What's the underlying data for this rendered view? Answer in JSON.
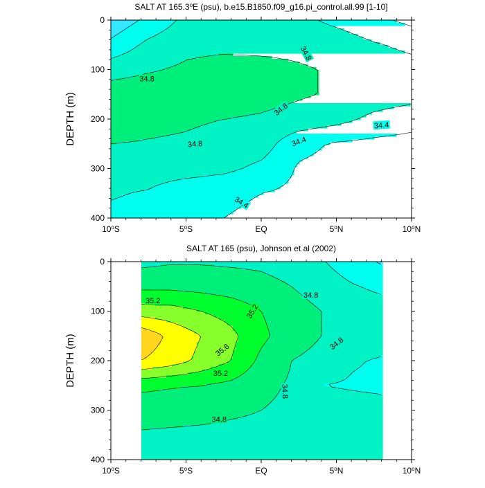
{
  "colors": {
    "levels": [
      34.2,
      34.4,
      34.6,
      34.8,
      35.0,
      35.2,
      35.4,
      35.6,
      35.8
    ],
    "fill": [
      "#00ccf4",
      "#33e8ff",
      "#00ffee",
      "#00f2c5",
      "#00ef7a",
      "#00ff2e",
      "#86ff2b",
      "#ffff00",
      "#ffd51e",
      "#ffae00"
    ]
  },
  "chart_data": [
    {
      "type": "heatmap",
      "title": "SALT AT 165.3",
      "title_deg": "o",
      "title_rest": "E (psu), b.e15.B1850.f09_g16.pi_control.all.99 [1-10]",
      "ylabel": "DEPTH (m)",
      "xlabel": "",
      "xlim": [
        -10,
        10
      ],
      "ylim": [
        400,
        0
      ],
      "x_ticks": [
        {
          "value": -10,
          "label": "10",
          "deg": "o",
          "suffix": "S"
        },
        {
          "value": -5,
          "label": "5",
          "deg": "o",
          "suffix": "S"
        },
        {
          "value": 0,
          "label": "EQ",
          "deg": "",
          "suffix": ""
        },
        {
          "value": 5,
          "label": "5",
          "deg": "o",
          "suffix": "N"
        },
        {
          "value": 10,
          "label": "10",
          "deg": "o",
          "suffix": "N"
        }
      ],
      "y_ticks": [
        "0",
        "100",
        "200",
        "300",
        "400"
      ],
      "y_tick_values": [
        0,
        100,
        200,
        300,
        400
      ],
      "x": [
        -10,
        -7.5,
        -5,
        -2.5,
        0,
        2.5,
        5,
        7.5,
        10
      ],
      "depth": [
        0,
        50,
        100,
        150,
        200,
        250,
        300,
        350,
        400
      ],
      "z": [
        [
          34.25,
          34.45,
          34.65,
          34.75,
          34.75,
          34.65,
          34.55,
          34.45,
          34.35
        ],
        [
          34.45,
          34.65,
          34.75,
          34.75,
          34.75,
          34.75,
          34.72,
          34.62,
          34.55
        ],
        [
          34.72,
          34.78,
          34.83,
          34.88,
          34.86,
          34.82,
          34.78,
          34.72,
          34.68
        ],
        [
          34.9,
          34.92,
          34.91,
          34.9,
          34.86,
          34.82,
          34.78,
          34.72,
          34.68
        ],
        [
          34.88,
          34.84,
          34.82,
          34.8,
          34.78,
          34.74,
          34.67,
          34.55,
          34.48
        ],
        [
          34.8,
          34.79,
          34.78,
          34.75,
          34.7,
          34.45,
          34.38,
          34.35,
          34.33
        ],
        [
          34.72,
          34.71,
          34.7,
          34.65,
          34.55,
          34.38,
          34.35,
          34.33,
          34.32
        ],
        [
          34.62,
          34.58,
          34.45,
          34.42,
          34.4,
          34.36,
          34.34,
          34.33,
          34.32
        ],
        [
          34.55,
          34.52,
          34.45,
          34.4,
          34.38,
          34.35,
          34.33,
          34.32,
          34.31
        ]
      ],
      "contour_labels": [
        {
          "text": "34.8",
          "x": -7.6,
          "y": 118,
          "angle": 0
        },
        {
          "text": "34.8",
          "x": 3.0,
          "y": 67,
          "angle": 62
        },
        {
          "text": "34.8",
          "x": 1.3,
          "y": 180,
          "angle": -38
        },
        {
          "text": "34.4",
          "x": 8.0,
          "y": 212,
          "angle": -4
        },
        {
          "text": "34.8",
          "x": -4.4,
          "y": 250,
          "angle": -4
        },
        {
          "text": "34.4",
          "x": 2.5,
          "y": 245,
          "angle": -20
        },
        {
          "text": "34.4",
          "x": -1.3,
          "y": 368,
          "angle": 32
        }
      ]
    },
    {
      "type": "heatmap",
      "title": "SALT AT 165 (psu), Johnson et al (2002)",
      "title_deg": "",
      "title_rest": "",
      "ylabel": "DEPTH (m)",
      "xlabel": "",
      "xlim": [
        -10,
        10
      ],
      "ylim": [
        400,
        0
      ],
      "data_xlim": [
        -8,
        8
      ],
      "data_ylim": [
        0,
        400
      ],
      "x_ticks": [
        {
          "value": -10,
          "label": "10",
          "deg": "o",
          "suffix": "S"
        },
        {
          "value": -5,
          "label": "5",
          "deg": "o",
          "suffix": "S"
        },
        {
          "value": 0,
          "label": "EQ",
          "deg": "",
          "suffix": ""
        },
        {
          "value": 5,
          "label": "5",
          "deg": "o",
          "suffix": "N"
        },
        {
          "value": 10,
          "label": "10",
          "deg": "o",
          "suffix": "N"
        }
      ],
      "y_ticks": [
        "0",
        "100",
        "200",
        "300",
        "400"
      ],
      "y_tick_values": [
        0,
        100,
        200,
        300,
        400
      ],
      "x": [
        -8,
        -6,
        -4,
        -2,
        0,
        2,
        4,
        6,
        8
      ],
      "depth": [
        0,
        50,
        100,
        150,
        200,
        250,
        300,
        350,
        400
      ],
      "z": [
        [
          34.75,
          34.78,
          34.78,
          34.77,
          34.76,
          34.72,
          34.62,
          34.48,
          34.38
        ],
        [
          34.95,
          34.95,
          34.93,
          34.9,
          34.86,
          34.8,
          34.72,
          34.62,
          34.55
        ],
        [
          35.3,
          35.28,
          35.2,
          35.12,
          35.0,
          34.88,
          34.8,
          34.74,
          34.7
        ],
        [
          35.75,
          35.55,
          35.4,
          35.25,
          35.05,
          34.88,
          34.8,
          34.75,
          34.7
        ],
        [
          35.6,
          35.5,
          35.35,
          35.2,
          34.95,
          34.8,
          34.75,
          34.62,
          34.58
        ],
        [
          35.05,
          35.02,
          35.0,
          34.95,
          34.85,
          34.78,
          34.6,
          34.58,
          34.56
        ],
        [
          34.88,
          34.87,
          34.86,
          34.83,
          34.8,
          34.76,
          34.7,
          34.68,
          34.67
        ],
        [
          34.78,
          34.77,
          34.76,
          34.75,
          34.75,
          34.72,
          34.7,
          34.69,
          34.68
        ],
        [
          34.73,
          34.73,
          34.73,
          34.72,
          34.72,
          34.7,
          34.69,
          34.68,
          34.67
        ]
      ],
      "contour_labels": [
        {
          "text": "35.2",
          "x": -7.2,
          "y": 78,
          "angle": 0
        },
        {
          "text": "35.2",
          "x": -0.6,
          "y": 100,
          "angle": -58
        },
        {
          "text": "35.6",
          "x": -2.6,
          "y": 178,
          "angle": -38
        },
        {
          "text": "35.2",
          "x": -2.7,
          "y": 225,
          "angle": 0
        },
        {
          "text": "34.8",
          "x": 3.3,
          "y": 67,
          "angle": 0
        },
        {
          "text": "34.8",
          "x": 5.0,
          "y": 165,
          "angle": -38
        },
        {
          "text": "34.8",
          "x": 1.6,
          "y": 262,
          "angle": 88
        },
        {
          "text": "34.8",
          "x": -2.8,
          "y": 318,
          "angle": 0
        }
      ]
    }
  ]
}
